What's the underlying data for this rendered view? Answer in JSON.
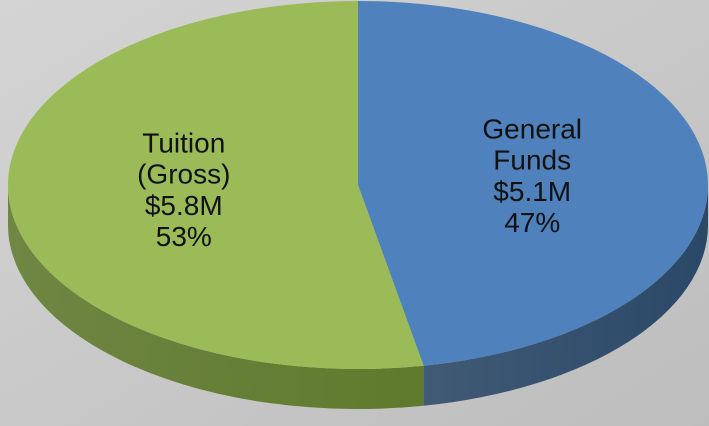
{
  "chart_data": {
    "type": "pie",
    "categories": [
      "General Funds",
      "Tuition (Gross)"
    ],
    "values": [
      47,
      53
    ],
    "value_labels": [
      "47%",
      "53%"
    ],
    "amount_labels": [
      "$5.1M",
      "$5.8M"
    ],
    "colors": [
      "#4f81bd",
      "#9bbb59"
    ],
    "side_colors": [
      "#2a4868",
      "#5f7a2c"
    ]
  }
}
